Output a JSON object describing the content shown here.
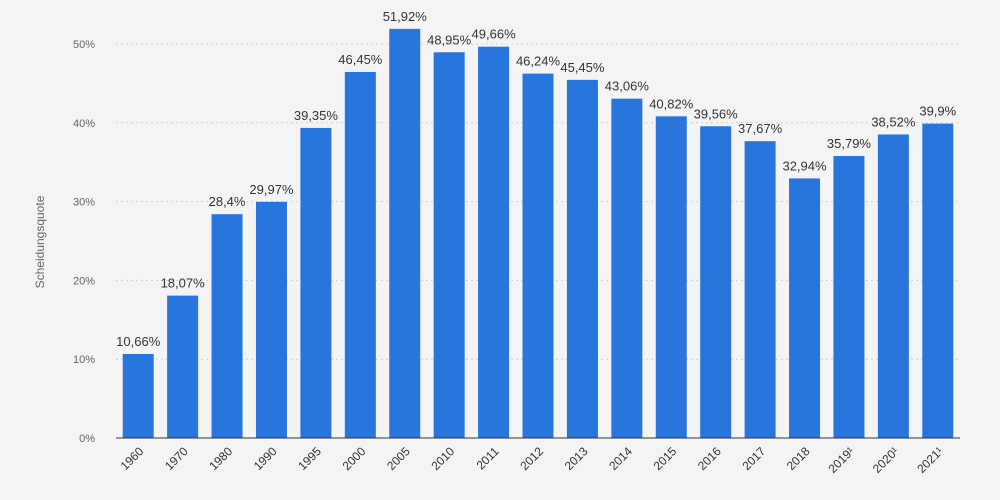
{
  "chart_data": {
    "type": "bar",
    "categories": [
      "1960",
      "1970",
      "1980",
      "1990",
      "1995",
      "2000",
      "2005",
      "2010",
      "2011",
      "2012",
      "2013",
      "2014",
      "2015",
      "2016",
      "2017",
      "2018",
      "2019¹",
      "2020¹",
      "2021¹"
    ],
    "values": [
      10.66,
      18.07,
      28.4,
      29.97,
      39.35,
      46.45,
      51.92,
      48.95,
      49.66,
      46.24,
      45.45,
      43.06,
      40.82,
      39.56,
      37.67,
      32.94,
      35.79,
      38.52,
      39.9
    ],
    "value_labels": [
      "10,66%",
      "18,07%",
      "28,4%",
      "29,97%",
      "39,35%",
      "46,45%",
      "51,92%",
      "48,95%",
      "49,66%",
      "46,24%",
      "45,45%",
      "43,06%",
      "40,82%",
      "39,56%",
      "37,67%",
      "32,94%",
      "35,79%",
      "38,52%",
      "39,9%"
    ],
    "ylabel": "Scheidungsquote",
    "ylim": [
      0,
      50
    ],
    "yticks": [
      0,
      10,
      20,
      30,
      40,
      50
    ],
    "ytick_labels": [
      "0%",
      "10%",
      "20%",
      "30%",
      "40%",
      "50%"
    ],
    "grid": true,
    "legend": "none",
    "colors": {
      "bar": "#2876dd",
      "grid": "#cfcfcf",
      "axis": "#333333",
      "text": "#333333",
      "tick": "#666666"
    }
  }
}
